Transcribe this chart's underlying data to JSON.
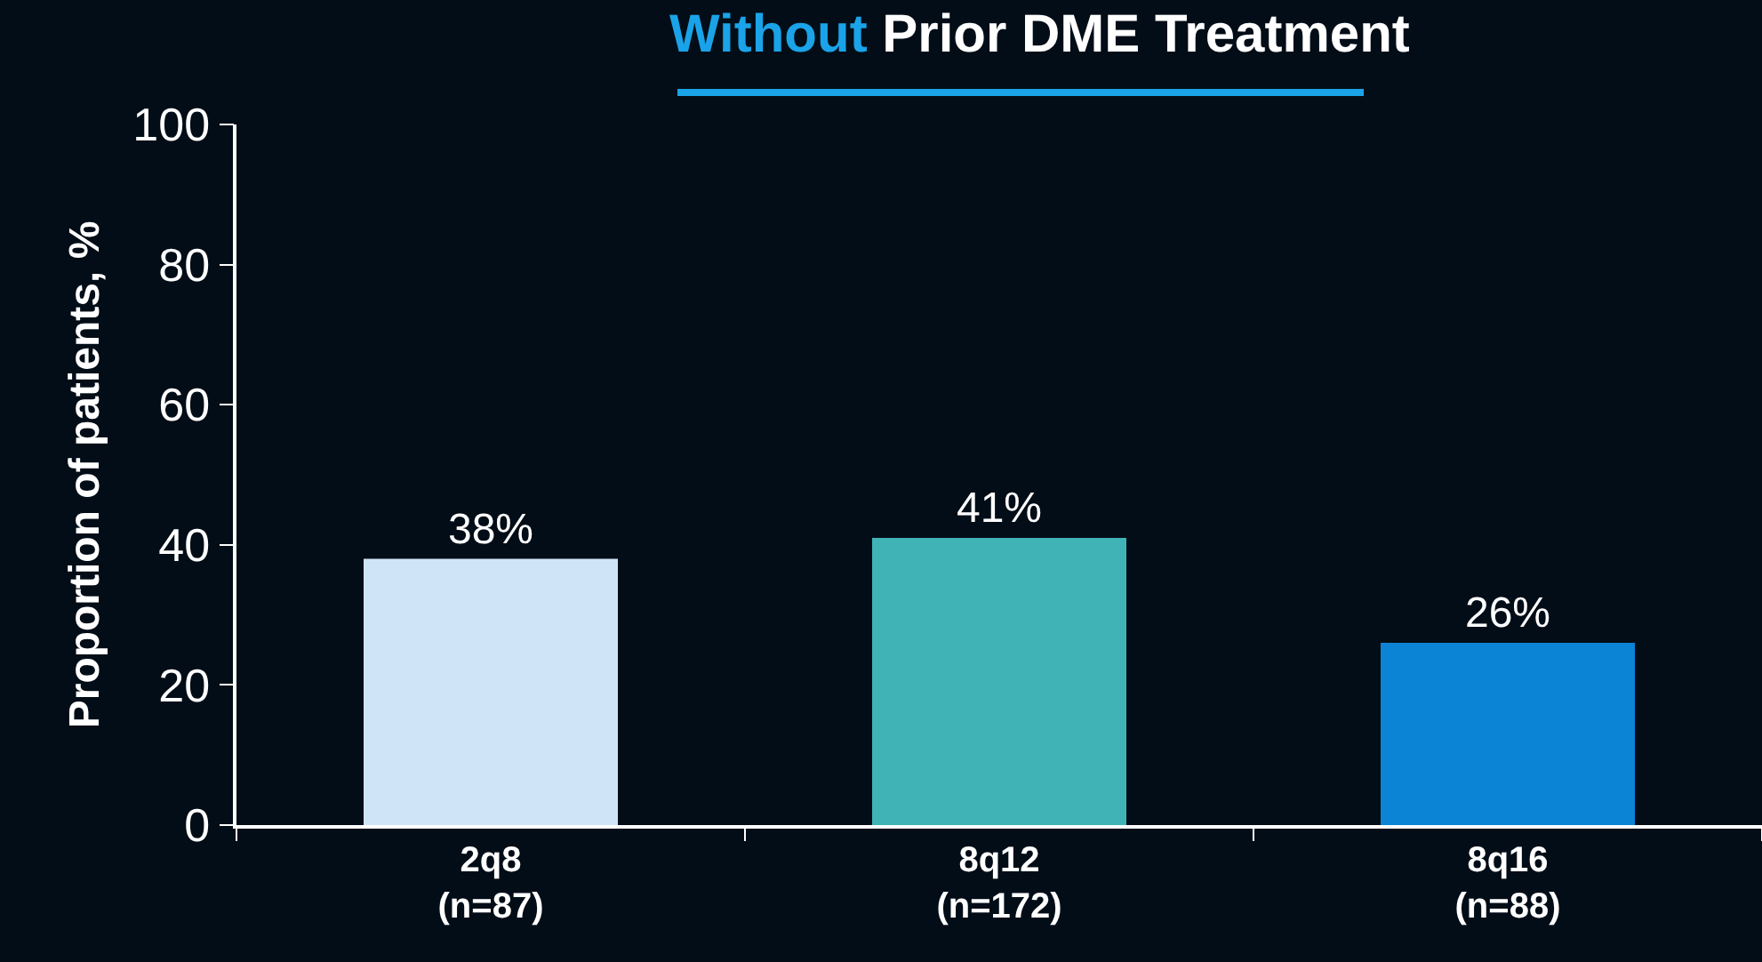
{
  "chart_data": {
    "type": "bar",
    "title": "Without Prior DME Treatment",
    "ylabel": "Proportion of patients, %",
    "categories": [
      "2q8\n(n=87)",
      "8q12\n(n=172)",
      "8q16\n(n=88)"
    ],
    "values": [
      38,
      41,
      26
    ],
    "colors": [
      "#cfe4f7",
      "#40b3b6",
      "#0b84d6"
    ],
    "value_labels": [
      "38%",
      "41%",
      "26%"
    ],
    "ylim": [
      0,
      100
    ],
    "yticks": [
      0,
      20,
      40,
      60,
      80,
      100
    ],
    "grid": false
  }
}
